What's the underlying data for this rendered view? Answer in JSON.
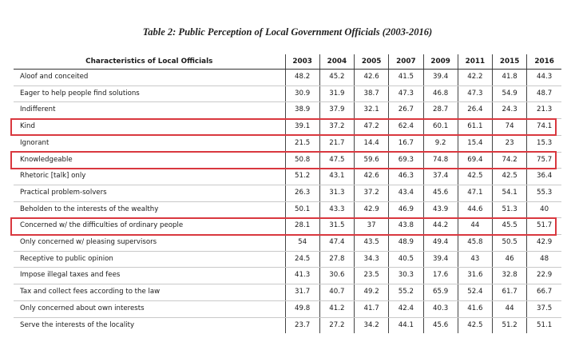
{
  "title": "Table 2: Public Perception of Local Government Officials (2003-2016)",
  "header": {
    "characteristic_label": "Characteristics of Local Officials",
    "years": [
      "2003",
      "2004",
      "2005",
      "2007",
      "2009",
      "2011",
      "2015",
      "2016"
    ]
  },
  "rows": [
    {
      "label": "Aloof and conceited",
      "values": [
        "48.2",
        "45.2",
        "42.6",
        "41.5",
        "39.4",
        "42.2",
        "41.8",
        "44.3"
      ]
    },
    {
      "label": "Eager to help people find solutions",
      "values": [
        "30.9",
        "31.9",
        "38.7",
        "47.3",
        "46.8",
        "47.3",
        "54.9",
        "48.7"
      ]
    },
    {
      "label": "Indifferent",
      "values": [
        "38.9",
        "37.9",
        "32.1",
        "26.7",
        "28.7",
        "26.4",
        "24.3",
        "21.3"
      ]
    },
    {
      "label": "Kind",
      "values": [
        "39.1",
        "37.2",
        "47.2",
        "62.4",
        "60.1",
        "61.1",
        "74",
        "74.1"
      ],
      "highlighted": true
    },
    {
      "label": "Ignorant",
      "values": [
        "21.5",
        "21.7",
        "14.4",
        "16.7",
        "9.2",
        "15.4",
        "23",
        "15.3"
      ]
    },
    {
      "label": "Knowledgeable",
      "values": [
        "50.8",
        "47.5",
        "59.6",
        "69.3",
        "74.8",
        "69.4",
        "74.2",
        "75.7"
      ],
      "highlighted": true
    },
    {
      "label": "Rhetoric [talk] only",
      "values": [
        "51.2",
        "43.1",
        "42.6",
        "46.3",
        "37.4",
        "42.5",
        "42.5",
        "36.4"
      ]
    },
    {
      "label": "Practical problem-solvers",
      "values": [
        "26.3",
        "31.3",
        "37.2",
        "43.4",
        "45.6",
        "47.1",
        "54.1",
        "55.3"
      ]
    },
    {
      "label": "Beholden to the interests of the wealthy",
      "values": [
        "50.1",
        "43.3",
        "42.9",
        "46.9",
        "43.9",
        "44.6",
        "51.3",
        "40"
      ]
    },
    {
      "label": "Concerned w/ the difficulties of ordinary people",
      "values": [
        "28.1",
        "31.5",
        "37",
        "43.8",
        "44.2",
        "44",
        "45.5",
        "51.7"
      ],
      "highlighted": true
    },
    {
      "label": "Only concerned w/ pleasing supervisors",
      "values": [
        "54",
        "47.4",
        "43.5",
        "48.9",
        "49.4",
        "45.8",
        "50.5",
        "42.9"
      ]
    },
    {
      "label": "Receptive to public opinion",
      "values": [
        "24.5",
        "27.8",
        "34.3",
        "40.5",
        "39.4",
        "43",
        "46",
        "48"
      ]
    },
    {
      "label": "Impose illegal taxes and fees",
      "values": [
        "41.3",
        "30.6",
        "23.5",
        "30.3",
        "17.6",
        "31.6",
        "32.8",
        "22.9"
      ]
    },
    {
      "label": "Tax and collect fees according to the law",
      "values": [
        "31.7",
        "40.7",
        "49.2",
        "55.2",
        "65.9",
        "52.4",
        "61.7",
        "66.7"
      ]
    },
    {
      "label": "Only concerned about own interests",
      "values": [
        "49.8",
        "41.2",
        "41.7",
        "42.4",
        "40.3",
        "41.6",
        "44",
        "37.5"
      ]
    },
    {
      "label": "Serve the interests of the locality",
      "values": [
        "23.7",
        "27.2",
        "34.2",
        "44.1",
        "45.6",
        "42.5",
        "51.2",
        "51.1"
      ]
    }
  ],
  "colors": {
    "highlight": "#d9383f",
    "text": "#1a1a1a"
  }
}
